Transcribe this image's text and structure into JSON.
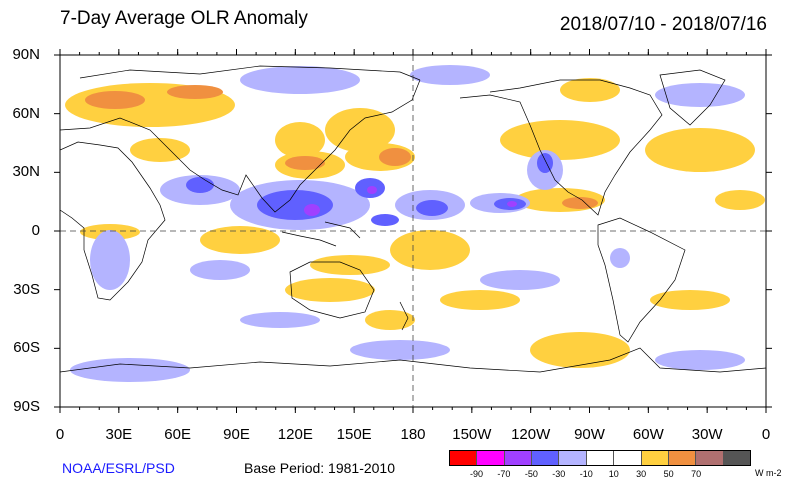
{
  "header": {
    "title": "7-Day Average OLR Anomaly",
    "date_range": "2018/07/10 - 2018/07/16"
  },
  "axes": {
    "lat_labels": [
      "90N",
      "60N",
      "30N",
      "0",
      "30S",
      "60S",
      "90S"
    ],
    "lon_labels": [
      "0",
      "30E",
      "60E",
      "90E",
      "120E",
      "150E",
      "180",
      "150W",
      "120W",
      "90W",
      "60W",
      "30W",
      "0"
    ]
  },
  "footer": {
    "credit": "NOAA/ESRL/PSD",
    "base_period": "Base Period: 1981-2010"
  },
  "colorbar": {
    "colors": [
      "#ff0000",
      "#ff00ff",
      "#a040ff",
      "#6060ff",
      "#b4b4ff",
      "#ffffff",
      "#ffffff",
      "#ffd040",
      "#f09040",
      "#b07070",
      "#555555"
    ],
    "ticks": [
      "-90",
      "-70",
      "-50",
      "-30",
      "-10",
      "10",
      "30",
      "50",
      "70"
    ],
    "units": "W m-2"
  },
  "colors": {
    "negative_light": "#b4b4ff",
    "negative_medium": "#6060ff",
    "negative_strong": "#a040ff",
    "positive_light": "#ffd040",
    "positive_medium": "#f09040"
  }
}
